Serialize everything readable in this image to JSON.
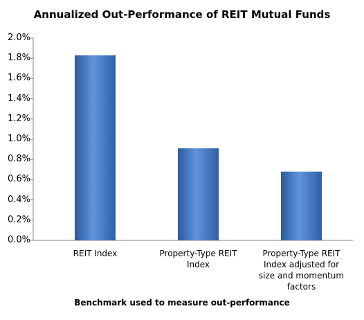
{
  "chart_data": {
    "type": "bar",
    "title": "Annualized Out-Performance of REIT Mutual Funds",
    "x_label": "Benchmark used to measure out-performance",
    "categories": [
      "REIT Index",
      "Property-Type REIT Index",
      "Property-Type REIT Index adjusted for size and momentum factors"
    ],
    "values": [
      1.83,
      0.91,
      0.68
    ],
    "color": "#3f75c4",
    "ylim": [
      0,
      2.0
    ],
    "yticks": [
      {
        "value": 0,
        "label": "0.0%"
      },
      {
        "value": 0.2,
        "label": "0.2%"
      },
      {
        "value": 0.4,
        "label": "0.4%"
      },
      {
        "value": 0.6,
        "label": "0.6%"
      },
      {
        "value": 0.8,
        "label": "0.8%"
      },
      {
        "value": 1.0,
        "label": "1.0%"
      },
      {
        "value": 1.2,
        "label": "1.2%"
      },
      {
        "value": 1.4,
        "label": "1.4%"
      },
      {
        "value": 1.6,
        "label": "1.6%"
      },
      {
        "value": 1.8,
        "label": "1.8%"
      },
      {
        "value": 2.0,
        "label": "2.0%"
      }
    ]
  }
}
